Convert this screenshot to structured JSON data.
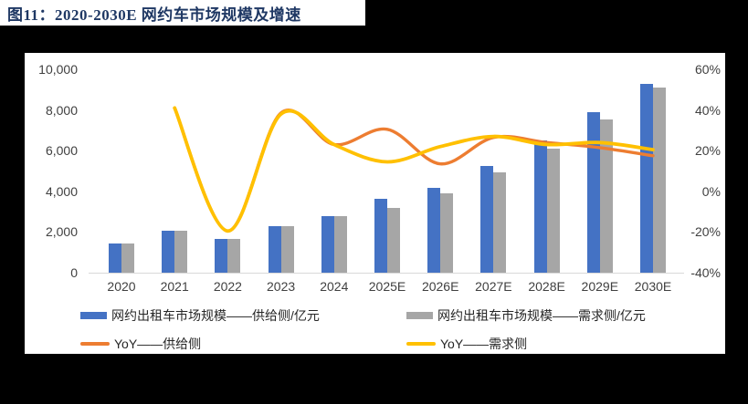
{
  "figure": {
    "title": "图11：2020-2030E 网约车市场规模及增速"
  },
  "colors": {
    "supply_bar": "#4472C4",
    "demand_bar": "#A6A6A6",
    "supply_line": "#ED7D31",
    "demand_line": "#FFC000",
    "title_navy": "#1F3864",
    "axis_gray": "#D9D9D9"
  },
  "chart_data": {
    "type": "bar+line combo",
    "title": "2020-2030E 网约车市场规模及增速",
    "categories": [
      "2020",
      "2021",
      "2022",
      "2023",
      "2024",
      "2025E",
      "2026E",
      "2027E",
      "2028E",
      "2029E",
      "2030E"
    ],
    "series": [
      {
        "name": "网约出租车市场规模——供给侧/亿元",
        "type": "bar",
        "axis": "left",
        "color": "#4472C4",
        "values": [
          1450,
          2050,
          1650,
          2280,
          2800,
          3650,
          4150,
          5250,
          6500,
          7900,
          9300
        ]
      },
      {
        "name": "网约出租车市场规模——需求侧/亿元",
        "type": "bar",
        "axis": "left",
        "color": "#A6A6A6",
        "values": [
          1450,
          2050,
          1650,
          2280,
          2800,
          3200,
          3900,
          4950,
          6100,
          7550,
          9100
        ]
      },
      {
        "name": "YoY——供给侧",
        "type": "line",
        "axis": "right",
        "color": "#ED7D31",
        "values": [
          null,
          41,
          -19.5,
          38.5,
          23,
          30.5,
          13.5,
          26.5,
          24,
          21.5,
          17.5
        ]
      },
      {
        "name": "YoY——需求侧",
        "type": "line",
        "axis": "right",
        "color": "#FFC000",
        "values": [
          null,
          41,
          -19.5,
          38,
          23,
          14.5,
          22,
          27,
          23,
          24,
          20.5
        ]
      }
    ],
    "left_axis": {
      "min": 0,
      "max": 10000,
      "tick_values": [
        0,
        2000,
        4000,
        6000,
        8000,
        10000
      ],
      "tick_labels": [
        "0",
        "2,000",
        "4,000",
        "6,000",
        "8,000",
        "10,000"
      ]
    },
    "right_axis": {
      "min": -40,
      "max": 60,
      "tick_values": [
        -40,
        -20,
        0,
        20,
        40,
        60
      ],
      "tick_labels": [
        "-40%",
        "-20%",
        "0%",
        "20%",
        "40%",
        "60%"
      ]
    },
    "grid": false,
    "legend_position": "bottom"
  }
}
